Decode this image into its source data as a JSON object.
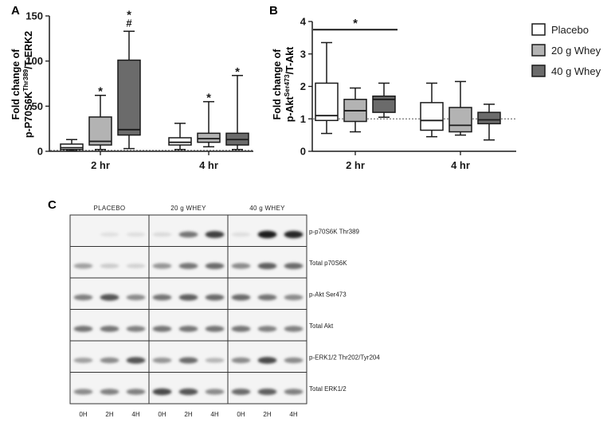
{
  "colors": {
    "placebo": "#ffffff",
    "whey20": "#b3b3b3",
    "whey40": "#6b6b6b",
    "line": "#1a1a1a"
  },
  "legend": {
    "items": [
      {
        "label": "Placebo",
        "color": "#ffffff"
      },
      {
        "label": "20 g Whey",
        "color": "#b3b3b3"
      },
      {
        "label": "40 g Whey",
        "color": "#6b6b6b"
      }
    ]
  },
  "chart_data": [
    {
      "panel": "A",
      "type": "box",
      "ylabel_line1": "Fold change of",
      "ylabel_prefix": "p-P70S6K",
      "ylabel_sup": "Thr389",
      "ylabel_suffix": "/T-ERK2",
      "ylim": [
        0,
        150
      ],
      "yticks": [
        "0",
        "50",
        "100",
        "150"
      ],
      "ytick_values": [
        0,
        50,
        100,
        150
      ],
      "categories": [
        "2 hr",
        "4 hr"
      ],
      "reference_line": 1,
      "series": [
        {
          "name": "Placebo",
          "boxes": [
            {
              "min": 0.5,
              "q1": 2,
              "median": 4,
              "q3": 8,
              "max": 13
            },
            {
              "min": 2,
              "q1": 7,
              "median": 10,
              "q3": 15,
              "max": 31
            }
          ]
        },
        {
          "name": "20 g Whey",
          "boxes": [
            {
              "min": 2,
              "q1": 7,
              "median": 11,
              "q3": 38,
              "max": 62
            },
            {
              "min": 5,
              "q1": 10,
              "median": 14,
              "q3": 20,
              "max": 55
            }
          ]
        },
        {
          "name": "40 g Whey",
          "boxes": [
            {
              "min": 3,
              "q1": 18,
              "median": 24,
              "q3": 101,
              "max": 133
            },
            {
              "min": 2,
              "q1": 7,
              "median": 13,
              "q3": 20,
              "max": 84
            }
          ]
        }
      ],
      "annotations": [
        {
          "text": "*",
          "category": 0,
          "series": 1
        },
        {
          "text": "*",
          "category": 0,
          "series": 2,
          "stack": 0
        },
        {
          "text": "#",
          "category": 0,
          "series": 2,
          "stack": 1
        },
        {
          "text": "*",
          "category": 1,
          "series": 1
        },
        {
          "text": "*",
          "category": 1,
          "series": 2
        }
      ]
    },
    {
      "panel": "B",
      "type": "box",
      "ylabel_line1": "Fold change of",
      "ylabel_prefix": "p-Akt",
      "ylabel_sup": "Ser473",
      "ylabel_suffix": "/T-Akt",
      "ylim": [
        0,
        4
      ],
      "yticks": [
        "0",
        "1",
        "2",
        "3",
        "4"
      ],
      "ytick_values": [
        0,
        1,
        2,
        3,
        4
      ],
      "categories": [
        "2 hr",
        "4 hr"
      ],
      "reference_line": 1,
      "series": [
        {
          "name": "Placebo",
          "boxes": [
            {
              "min": 0.55,
              "q1": 0.95,
              "median": 1.1,
              "q3": 2.1,
              "max": 3.35
            },
            {
              "min": 0.45,
              "q1": 0.65,
              "median": 0.95,
              "q3": 1.5,
              "max": 2.1
            }
          ]
        },
        {
          "name": "20 g Whey",
          "boxes": [
            {
              "min": 0.6,
              "q1": 0.92,
              "median": 1.25,
              "q3": 1.6,
              "max": 1.95
            },
            {
              "min": 0.5,
              "q1": 0.6,
              "median": 0.8,
              "q3": 1.35,
              "max": 2.15
            }
          ]
        },
        {
          "name": "40 g Whey",
          "boxes": [
            {
              "min": 1.05,
              "q1": 1.2,
              "median": 1.6,
              "q3": 1.7,
              "max": 2.1
            },
            {
              "min": 0.35,
              "q1": 0.85,
              "median": 0.97,
              "q3": 1.2,
              "max": 1.45
            }
          ]
        }
      ],
      "significance_bar": {
        "text": "*",
        "y": 3.75
      }
    }
  ],
  "blot": {
    "panel": "C",
    "groups": [
      "PLACEBO",
      "20 g WHEY",
      "40 g WHEY"
    ],
    "lanes": [
      "0H",
      "2H",
      "4H"
    ],
    "rows": [
      {
        "label": "p-p70S6K Thr389",
        "bands": [
          [
            0,
            0.05,
            0.06
          ],
          [
            0.08,
            0.55,
            0.8
          ],
          [
            0.06,
            0.95,
            0.92
          ]
        ]
      },
      {
        "label": "Total p70S6K",
        "bands": [
          [
            0.35,
            0.15,
            0.12
          ],
          [
            0.4,
            0.55,
            0.6
          ],
          [
            0.45,
            0.65,
            0.6
          ]
        ]
      },
      {
        "label": "p-Akt Ser473",
        "bands": [
          [
            0.5,
            0.7,
            0.45
          ],
          [
            0.55,
            0.65,
            0.6
          ],
          [
            0.6,
            0.55,
            0.45
          ]
        ]
      },
      {
        "label": "Total Akt",
        "bands": [
          [
            0.55,
            0.55,
            0.5
          ],
          [
            0.55,
            0.55,
            0.55
          ],
          [
            0.55,
            0.5,
            0.5
          ]
        ]
      },
      {
        "label": "p-ERK1/2 Thr202/Tyr204",
        "bands": [
          [
            0.35,
            0.45,
            0.7
          ],
          [
            0.4,
            0.6,
            0.25
          ],
          [
            0.45,
            0.75,
            0.45
          ]
        ]
      },
      {
        "label": "Total ERK1/2",
        "bands": [
          [
            0.45,
            0.5,
            0.5
          ],
          [
            0.75,
            0.7,
            0.45
          ],
          [
            0.6,
            0.65,
            0.5
          ]
        ]
      }
    ]
  }
}
